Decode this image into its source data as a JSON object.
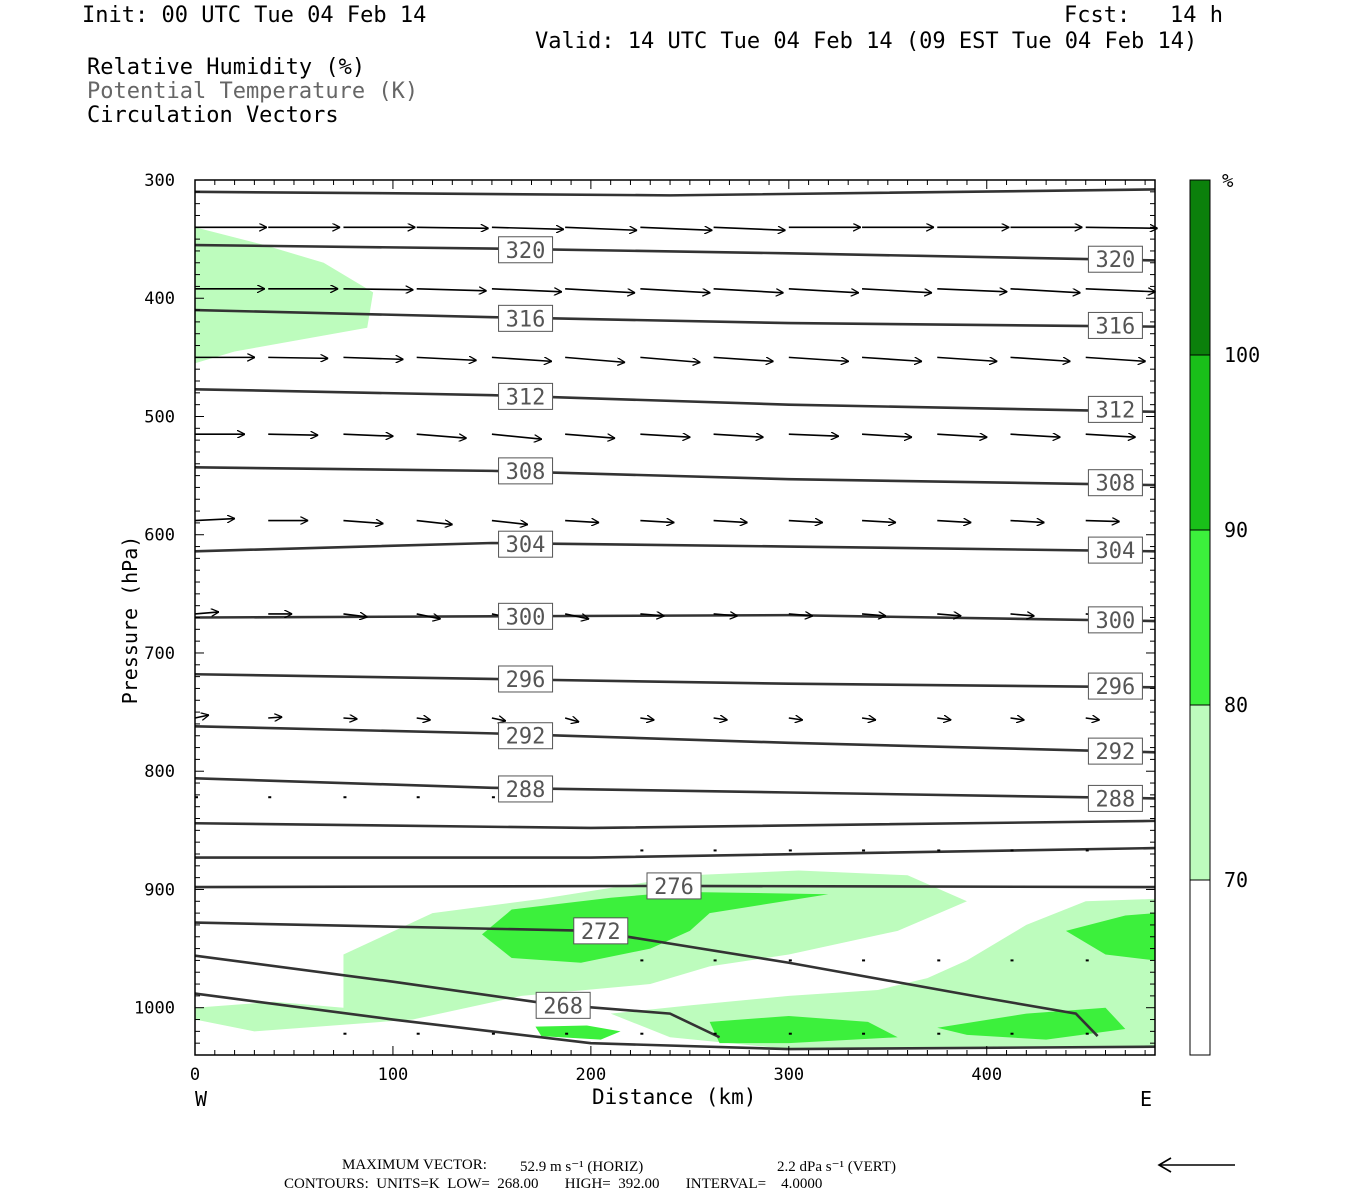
{
  "header": {
    "init": "Init: 00 UTC Tue 04 Feb 14",
    "fcst": "Fcst:   14 h",
    "valid": "Valid: 14 UTC Tue 04 Feb 14 (09 EST Tue 04 Feb 14)"
  },
  "titles": {
    "rh": "Relative Humidity (%)",
    "theta": "Potential Temperature (K)",
    "vectors": "Circulation Vectors"
  },
  "footer": {
    "maxvec_label": "MAXIMUM VECTOR:",
    "horiz": "52.9 m s⁻¹ (HORIZ)",
    "vert": "2.2 dPa s⁻¹ (VERT)",
    "contours": "CONTOURS:  UNITS=K  LOW=  268.00       HIGH=  392.00       INTERVAL=    4.0000"
  },
  "colors": {
    "rh_70_80": "#bdfcbd",
    "rh_80_90": "#3cf03c",
    "rh_90_100": "#19c019",
    "rh_100": "#0b800b",
    "contour": "#333333"
  },
  "chart_data": {
    "type": "cross-section",
    "xlabel": "Distance (km)",
    "ylabel": "Pressure (hPa)",
    "xlim": [
      0,
      485
    ],
    "ylim": [
      1040,
      300
    ],
    "x_ticks": [
      "0",
      "100",
      "200",
      "300",
      "400"
    ],
    "x_tick_values": [
      0,
      100,
      200,
      300,
      400
    ],
    "y_ticks": [
      "300",
      "400",
      "500",
      "600",
      "700",
      "800",
      "900",
      "1000"
    ],
    "y_tick_values": [
      300,
      400,
      500,
      600,
      700,
      800,
      900,
      1000
    ],
    "west_label": "W",
    "east_label": "E",
    "colorbar": {
      "unit": "%",
      "labels": [
        "70",
        "80",
        "90",
        "100"
      ],
      "levels": [
        70,
        80,
        90,
        100
      ]
    },
    "isentropes": [
      {
        "label": "",
        "points": [
          [
            0,
            310
          ],
          [
            240,
            313
          ],
          [
            485,
            308
          ]
        ],
        "labels_at": []
      },
      {
        "label": "320",
        "points": [
          [
            0,
            355
          ],
          [
            150,
            358
          ],
          [
            300,
            362
          ],
          [
            485,
            368
          ]
        ],
        "labels_at": [
          [
            167,
            359
          ],
          [
            465,
            367
          ]
        ]
      },
      {
        "label": "316",
        "points": [
          [
            0,
            410
          ],
          [
            150,
            416
          ],
          [
            300,
            421
          ],
          [
            485,
            424
          ]
        ],
        "labels_at": [
          [
            167,
            417
          ],
          [
            465,
            423
          ]
        ]
      },
      {
        "label": "312",
        "points": [
          [
            0,
            477
          ],
          [
            150,
            482
          ],
          [
            300,
            490
          ],
          [
            485,
            496
          ]
        ],
        "labels_at": [
          [
            167,
            483
          ],
          [
            465,
            494
          ]
        ]
      },
      {
        "label": "308",
        "points": [
          [
            0,
            543
          ],
          [
            150,
            546
          ],
          [
            300,
            553
          ],
          [
            485,
            558
          ]
        ],
        "labels_at": [
          [
            167,
            546
          ],
          [
            465,
            556
          ]
        ]
      },
      {
        "label": "304",
        "points": [
          [
            0,
            614
          ],
          [
            150,
            607
          ],
          [
            300,
            610
          ],
          [
            485,
            614
          ]
        ],
        "labels_at": [
          [
            167,
            608
          ],
          [
            465,
            613
          ]
        ]
      },
      {
        "label": "300",
        "points": [
          [
            0,
            670
          ],
          [
            150,
            669
          ],
          [
            300,
            668
          ],
          [
            485,
            673
          ]
        ],
        "labels_at": [
          [
            167,
            669
          ],
          [
            465,
            672
          ]
        ]
      },
      {
        "label": "296",
        "points": [
          [
            0,
            718
          ],
          [
            150,
            722
          ],
          [
            300,
            726
          ],
          [
            485,
            729
          ]
        ],
        "labels_at": [
          [
            167,
            722
          ],
          [
            465,
            728
          ]
        ]
      },
      {
        "label": "292",
        "points": [
          [
            0,
            762
          ],
          [
            150,
            768
          ],
          [
            300,
            776
          ],
          [
            485,
            784
          ]
        ],
        "labels_at": [
          [
            167,
            770
          ],
          [
            465,
            783
          ]
        ]
      },
      {
        "label": "288",
        "points": [
          [
            0,
            806
          ],
          [
            150,
            814
          ],
          [
            300,
            818
          ],
          [
            485,
            823
          ]
        ],
        "labels_at": [
          [
            167,
            815
          ],
          [
            465,
            823
          ]
        ]
      },
      {
        "label": "",
        "points": [
          [
            0,
            844
          ],
          [
            200,
            848
          ],
          [
            485,
            842
          ]
        ],
        "labels_at": []
      },
      {
        "label": "",
        "points": [
          [
            0,
            873
          ],
          [
            200,
            873
          ],
          [
            485,
            865
          ]
        ],
        "labels_at": []
      },
      {
        "label": "276",
        "points": [
          [
            0,
            898
          ],
          [
            240,
            897
          ],
          [
            485,
            898
          ]
        ],
        "labels_at": [
          [
            242,
            897
          ]
        ]
      },
      {
        "label": "272",
        "points": [
          [
            0,
            928
          ],
          [
            200,
            935
          ],
          [
            300,
            962
          ],
          [
            400,
            992
          ],
          [
            445,
            1005
          ],
          [
            456,
            1024
          ]
        ],
        "labels_at": [
          [
            205,
            935
          ]
        ]
      },
      {
        "label": "268",
        "points": [
          [
            0,
            956
          ],
          [
            100,
            978
          ],
          [
            180,
            997
          ],
          [
            240,
            1005
          ],
          [
            265,
            1025
          ]
        ],
        "labels_at": [
          [
            186,
            998
          ]
        ]
      },
      {
        "label": "",
        "points": [
          [
            0,
            988
          ],
          [
            100,
            1010
          ],
          [
            200,
            1030
          ],
          [
            300,
            1035
          ],
          [
            485,
            1033
          ]
        ],
        "labels_at": []
      }
    ],
    "rh_regions": [
      {
        "level": "70-80",
        "points": [
          [
            0,
            340
          ],
          [
            35,
            355
          ],
          [
            65,
            370
          ],
          [
            90,
            395
          ],
          [
            87,
            425
          ],
          [
            20,
            445
          ],
          [
            0,
            455
          ]
        ]
      },
      {
        "level": "70-80",
        "points": [
          [
            75,
            955
          ],
          [
            120,
            920
          ],
          [
            175,
            908
          ],
          [
            250,
            888
          ],
          [
            305,
            884
          ],
          [
            360,
            888
          ],
          [
            390,
            910
          ],
          [
            355,
            935
          ],
          [
            300,
            955
          ],
          [
            260,
            965
          ],
          [
            230,
            980
          ],
          [
            165,
            990
          ],
          [
            110,
            1010
          ],
          [
            30,
            1020
          ],
          [
            0,
            1010
          ],
          [
            0,
            1000
          ],
          [
            40,
            995
          ],
          [
            75,
            1000
          ]
        ]
      },
      {
        "level": "70-80",
        "points": [
          [
            390,
            960
          ],
          [
            420,
            930
          ],
          [
            450,
            910
          ],
          [
            485,
            908
          ],
          [
            485,
            1033
          ],
          [
            300,
            1035
          ],
          [
            240,
            1025
          ],
          [
            210,
            1005
          ],
          [
            250,
            998
          ],
          [
            300,
            990
          ],
          [
            345,
            985
          ],
          [
            370,
            975
          ]
        ]
      },
      {
        "level": "80-90",
        "points": [
          [
            145,
            938
          ],
          [
            160,
            917
          ],
          [
            210,
            907
          ],
          [
            245,
            902
          ],
          [
            320,
            904
          ],
          [
            260,
            920
          ],
          [
            250,
            935
          ],
          [
            230,
            950
          ],
          [
            195,
            962
          ],
          [
            160,
            958
          ]
        ]
      },
      {
        "level": "80-90",
        "points": [
          [
            260,
            1012
          ],
          [
            300,
            1007
          ],
          [
            340,
            1012
          ],
          [
            355,
            1025
          ],
          [
            300,
            1030
          ],
          [
            265,
            1030
          ]
        ]
      },
      {
        "level": "80-90",
        "points": [
          [
            375,
            1017
          ],
          [
            420,
            1005
          ],
          [
            460,
            1000
          ],
          [
            470,
            1018
          ],
          [
            430,
            1027
          ],
          [
            390,
            1023
          ]
        ]
      },
      {
        "level": "80-90",
        "points": [
          [
            440,
            935
          ],
          [
            470,
            922
          ],
          [
            485,
            920
          ],
          [
            485,
            960
          ],
          [
            460,
            955
          ]
        ]
      },
      {
        "level": "80-90",
        "points": [
          [
            172,
            1016
          ],
          [
            198,
            1015
          ],
          [
            215,
            1020
          ],
          [
            205,
            1027
          ],
          [
            175,
            1024
          ]
        ]
      }
    ],
    "vectors_rows": [
      {
        "p": 340,
        "x": [
          0,
          37,
          75,
          112,
          150,
          187,
          225,
          262,
          300,
          337,
          375,
          412,
          450
        ],
        "u": [
          36,
          36,
          36,
          36,
          36,
          36,
          36,
          36,
          36,
          36,
          36,
          36,
          36
        ],
        "dp": [
          0,
          0,
          0,
          1,
          2,
          3,
          3,
          3,
          0,
          0,
          0,
          0,
          1
        ]
      },
      {
        "p": 392,
        "x": [
          0,
          37,
          75,
          112,
          150,
          187,
          225,
          262,
          300,
          337,
          375,
          412,
          450
        ],
        "u": [
          35,
          35,
          35,
          35,
          35,
          35,
          35,
          35,
          35,
          35,
          35,
          35,
          35
        ],
        "dp": [
          0,
          0,
          1,
          2,
          3,
          4,
          4,
          4,
          4,
          4,
          3,
          4,
          3
        ]
      },
      {
        "p": 450,
        "x": [
          0,
          37,
          75,
          112,
          150,
          187,
          225,
          262,
          300,
          337,
          375,
          412,
          450
        ],
        "u": [
          30,
          30,
          30,
          30,
          30,
          30,
          30,
          30,
          30,
          30,
          30,
          30,
          30
        ],
        "dp": [
          0,
          1,
          2,
          3,
          4,
          5,
          5,
          4,
          4,
          4,
          4,
          4,
          4
        ]
      },
      {
        "p": 515,
        "x": [
          0,
          37,
          75,
          112,
          150,
          187,
          225,
          262,
          300,
          337,
          375,
          412,
          450
        ],
        "u": [
          25,
          25,
          25,
          25,
          25,
          25,
          25,
          25,
          25,
          25,
          25,
          25,
          25
        ],
        "dp": [
          0,
          1,
          2,
          4,
          5,
          4,
          3,
          3,
          2,
          3,
          3,
          3,
          3
        ]
      },
      {
        "p": 588,
        "x": [
          0,
          37,
          75,
          112,
          150,
          187,
          225,
          262,
          300,
          337,
          375,
          412,
          450
        ],
        "u": [
          20,
          20,
          20,
          18,
          18,
          17,
          17,
          17,
          17,
          17,
          17,
          17,
          17
        ],
        "dp": [
          -2,
          0,
          3,
          4,
          4,
          2,
          2,
          2,
          2,
          2,
          2,
          2,
          1
        ]
      },
      {
        "p": 667,
        "x": [
          0,
          37,
          75,
          112,
          150,
          187,
          225,
          262,
          300,
          337,
          375,
          412,
          450
        ],
        "u": [
          12,
          12,
          12,
          12,
          12,
          12,
          12,
          12,
          12,
          12,
          12,
          12,
          12
        ],
        "dp": [
          -2,
          0,
          3,
          5,
          5,
          5,
          2,
          2,
          2,
          2,
          2,
          2,
          2
        ]
      },
      {
        "p": 755,
        "x": [
          0,
          37,
          75,
          112,
          150,
          187,
          225,
          262,
          300,
          337,
          375,
          412,
          450
        ],
        "u": [
          7,
          7,
          7,
          7,
          7,
          7,
          7,
          7,
          7,
          7,
          7,
          7,
          7
        ],
        "dp": [
          -3,
          -1,
          1,
          2,
          3,
          4,
          2,
          2,
          2,
          2,
          2,
          2,
          2
        ]
      }
    ]
  }
}
